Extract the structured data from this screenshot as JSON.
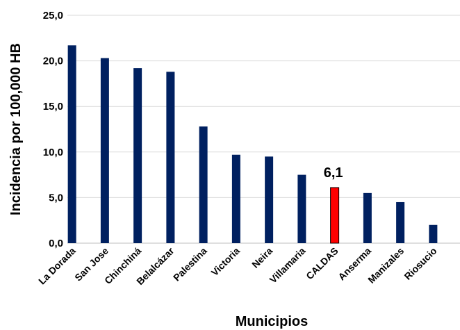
{
  "chart_data": {
    "type": "bar",
    "title": "",
    "xlabel": "Municipios",
    "ylabel": "Incidencia por 100,000 HB",
    "ylim": [
      0,
      25
    ],
    "yticks": [
      "0,0",
      "5,0",
      "10,0",
      "15,0",
      "20,0",
      "25,0"
    ],
    "grid": true,
    "categories": [
      "La Dorada",
      "San Jose",
      "Chinchiná",
      "Belalcázar",
      "Palestina",
      "Victoria",
      "Neira",
      "Villamaria",
      "CALDAS",
      "Anserma",
      "Manizales",
      "Riosucio"
    ],
    "values": [
      21.7,
      20.3,
      19.2,
      18.8,
      12.8,
      9.7,
      9.5,
      7.5,
      6.1,
      5.5,
      4.5,
      2.0
    ],
    "colors": {
      "default": "#002060",
      "highlight": "#ff0000"
    },
    "highlight_category": "CALDAS",
    "annotation": {
      "category": "CALDAS",
      "text": "6,1"
    }
  }
}
